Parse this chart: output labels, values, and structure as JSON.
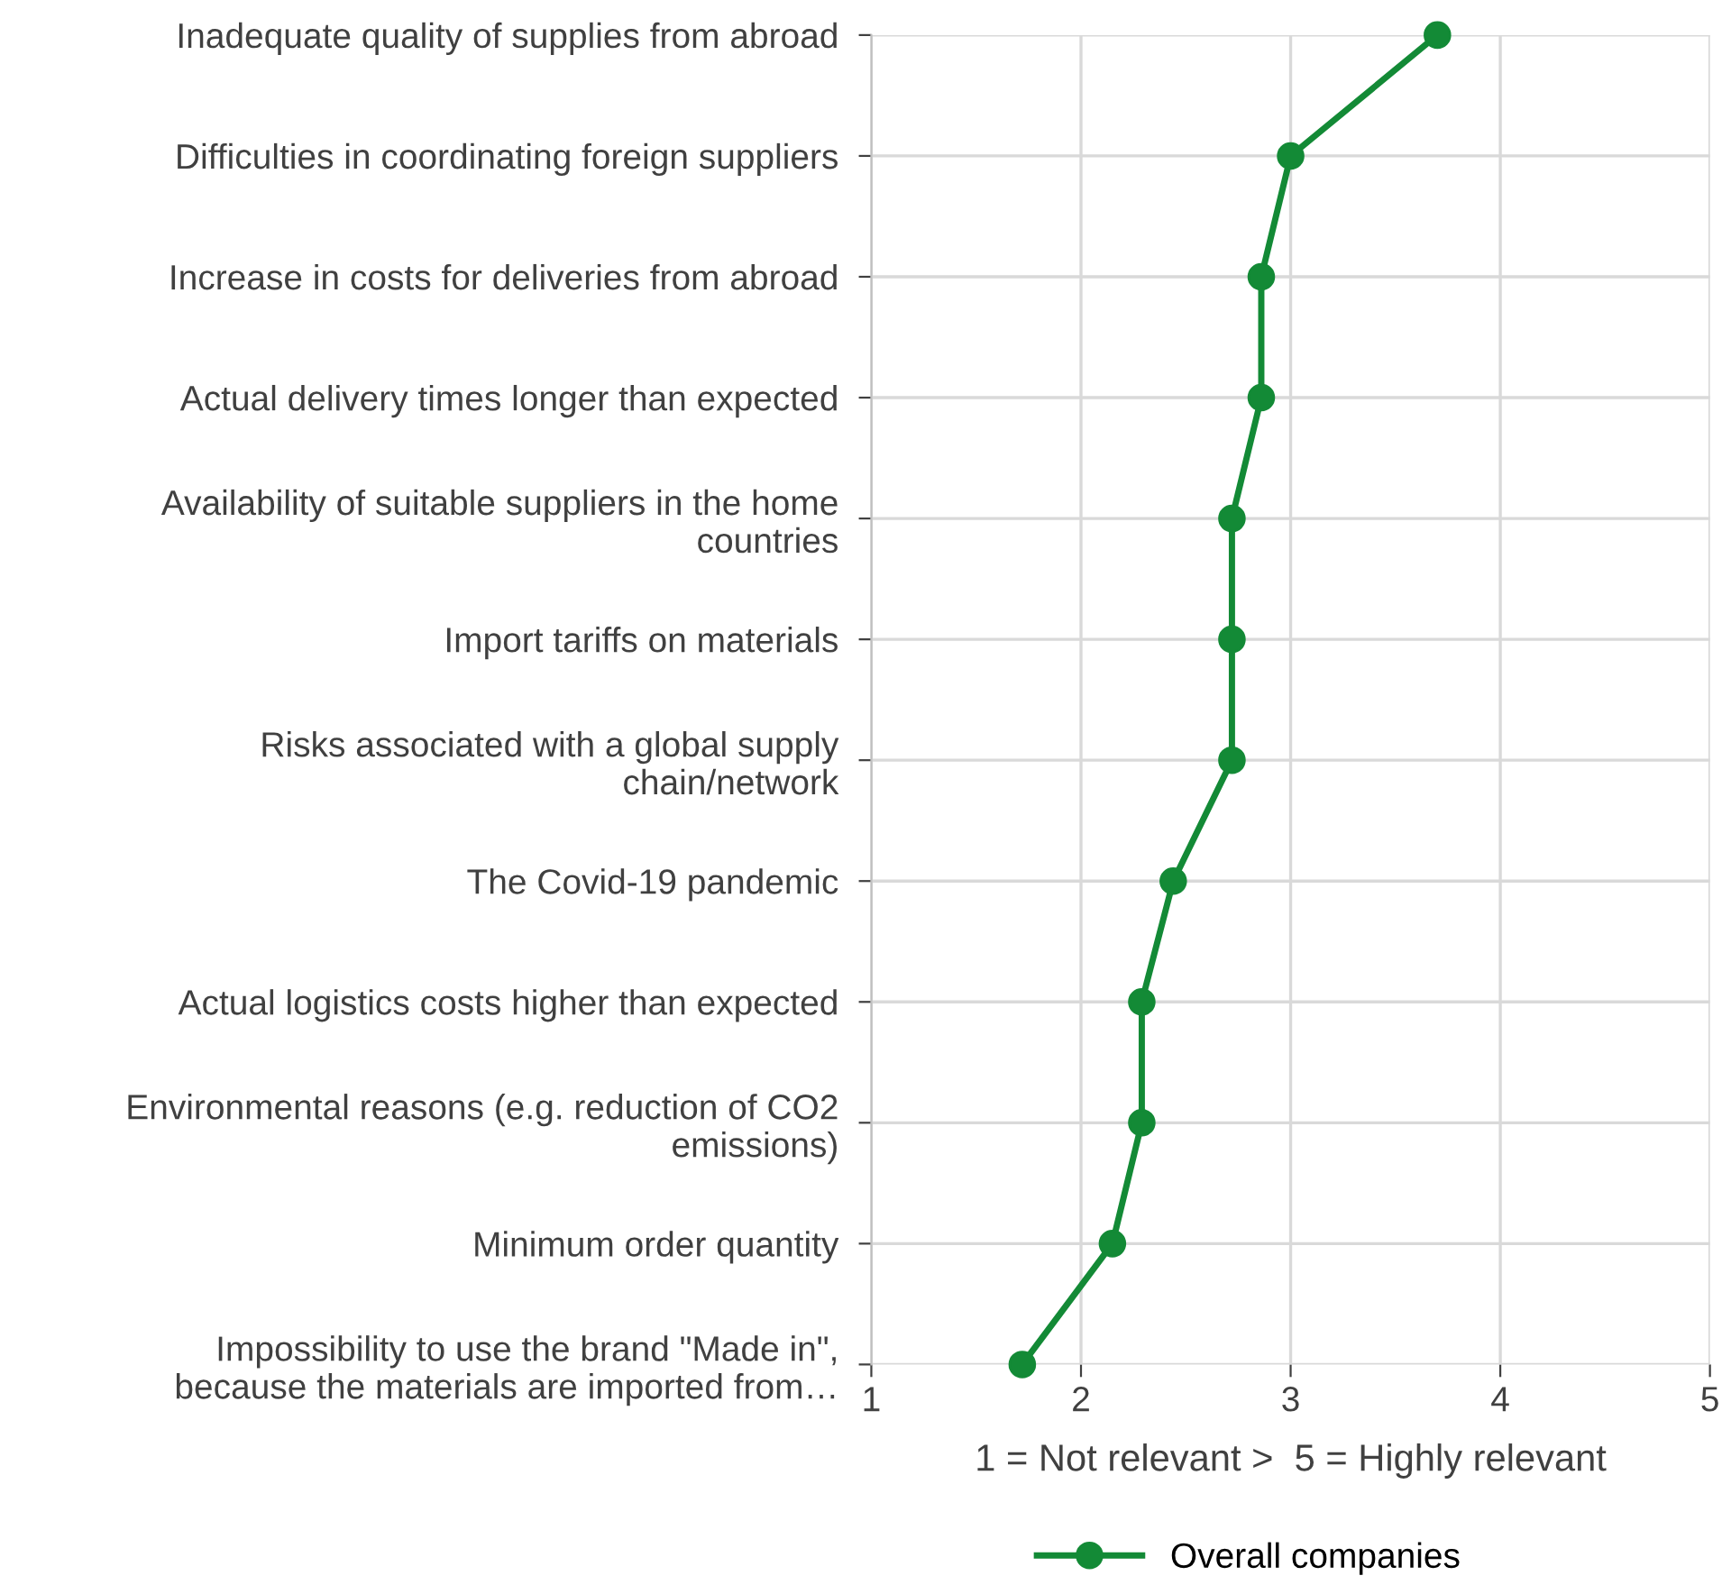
{
  "chart_data": {
    "type": "line",
    "orientation": "horizontal",
    "categories": [
      "Inadequate quality of supplies from abroad",
      "Difficulties in coordinating foreign suppliers",
      "Increase in costs for deliveries from abroad",
      "Actual delivery times longer than expected",
      "Availability of suitable suppliers in the home countries",
      "Import tariffs on materials",
      "Risks associated with a global supply chain/network",
      "The Covid-19 pandemic",
      "Actual logistics costs higher than expected",
      "Environmental reasons (e.g. reduction of CO2 emissions)",
      "Minimum order quantity",
      "Impossibility to use the brand \"Made in\", because the materials are imported from…"
    ],
    "series": [
      {
        "name": "Overall companies",
        "color": "#138a36",
        "values": [
          3.7,
          3.0,
          2.86,
          2.86,
          2.72,
          2.72,
          2.72,
          2.44,
          2.29,
          2.29,
          2.15,
          1.72
        ]
      }
    ],
    "xlim": [
      1,
      5
    ],
    "xticks": [
      1,
      2,
      3,
      4,
      5
    ],
    "xlabel": "1 = Not relevant >  5 = Highly relevant",
    "grid": true,
    "legend": "bottom",
    "marker": "circle",
    "line_style": "solid"
  }
}
